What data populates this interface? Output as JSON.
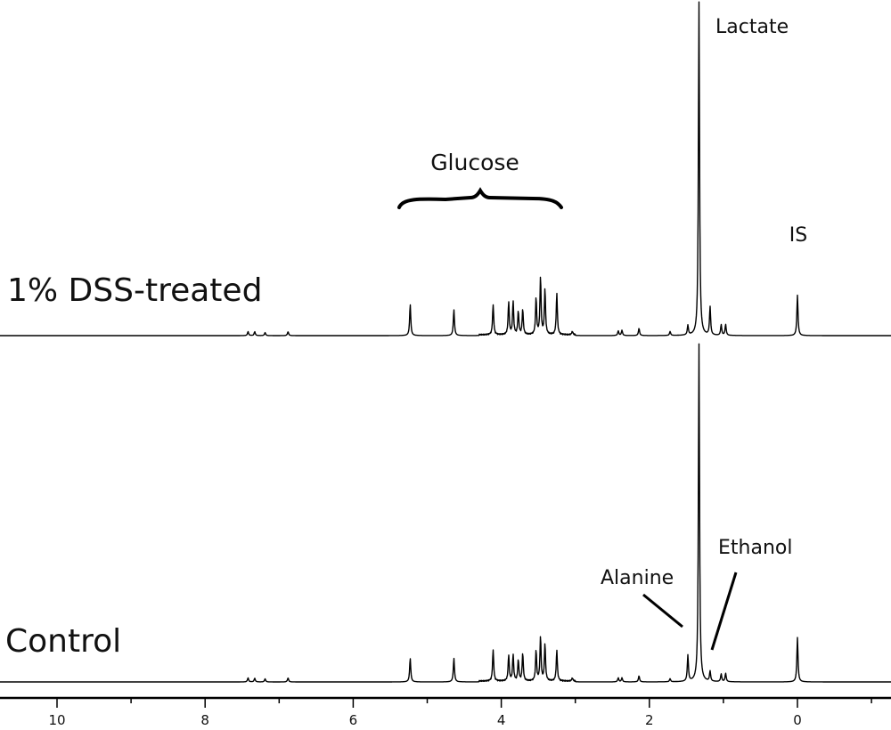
{
  "chart_data": {
    "type": "line",
    "title": "",
    "xlabel": "",
    "ylabel": "",
    "x_reversed": true,
    "xlim": [
      11,
      -1.25
    ],
    "x_ticks": [
      10,
      8,
      6,
      4,
      2,
      0
    ],
    "x_tick_labels": [
      "10",
      "8",
      "6",
      "4",
      "2",
      "0"
    ],
    "grid": false,
    "series": [
      {
        "name": "1% DSS-treated",
        "peaks": [
          {
            "ppm": 7.42,
            "h": 0.012
          },
          {
            "ppm": 7.33,
            "h": 0.012
          },
          {
            "ppm": 7.19,
            "h": 0.009
          },
          {
            "ppm": 6.88,
            "h": 0.012
          },
          {
            "ppm": 5.23,
            "h": 0.094
          },
          {
            "ppm": 4.64,
            "h": 0.078
          },
          {
            "ppm": 4.11,
            "h": 0.092
          },
          {
            "ppm": 3.9,
            "h": 0.098
          },
          {
            "ppm": 3.84,
            "h": 0.1
          },
          {
            "ppm": 3.77,
            "h": 0.07
          },
          {
            "ppm": 3.71,
            "h": 0.076
          },
          {
            "ppm": 3.53,
            "h": 0.11
          },
          {
            "ppm": 3.47,
            "h": 0.173
          },
          {
            "ppm": 3.41,
            "h": 0.137
          },
          {
            "ppm": 3.25,
            "h": 0.124
          },
          {
            "ppm": 3.04,
            "h": 0.01
          },
          {
            "ppm": 2.42,
            "h": 0.014
          },
          {
            "ppm": 2.37,
            "h": 0.016
          },
          {
            "ppm": 2.14,
            "h": 0.022
          },
          {
            "ppm": 1.72,
            "h": 0.012
          },
          {
            "ppm": 1.48,
            "h": 0.029
          },
          {
            "ppm": 1.33,
            "h": 1.0
          },
          {
            "ppm": 1.18,
            "h": 0.085
          },
          {
            "ppm": 1.03,
            "h": 0.032
          },
          {
            "ppm": 0.97,
            "h": 0.033
          },
          {
            "ppm": 0.0,
            "h": 0.121
          }
        ]
      },
      {
        "name": "Control",
        "peaks": [
          {
            "ppm": 7.42,
            "h": 0.012
          },
          {
            "ppm": 7.33,
            "h": 0.011
          },
          {
            "ppm": 7.19,
            "h": 0.009
          },
          {
            "ppm": 6.88,
            "h": 0.012
          },
          {
            "ppm": 5.23,
            "h": 0.07
          },
          {
            "ppm": 4.64,
            "h": 0.07
          },
          {
            "ppm": 4.11,
            "h": 0.094
          },
          {
            "ppm": 3.9,
            "h": 0.076
          },
          {
            "ppm": 3.84,
            "h": 0.078
          },
          {
            "ppm": 3.77,
            "h": 0.062
          },
          {
            "ppm": 3.71,
            "h": 0.082
          },
          {
            "ppm": 3.53,
            "h": 0.09
          },
          {
            "ppm": 3.47,
            "h": 0.131
          },
          {
            "ppm": 3.41,
            "h": 0.11
          },
          {
            "ppm": 3.25,
            "h": 0.091
          },
          {
            "ppm": 3.04,
            "h": 0.009
          },
          {
            "ppm": 2.42,
            "h": 0.012
          },
          {
            "ppm": 2.37,
            "h": 0.012
          },
          {
            "ppm": 2.14,
            "h": 0.018
          },
          {
            "ppm": 1.72,
            "h": 0.009
          },
          {
            "ppm": 1.48,
            "h": 0.077
          },
          {
            "ppm": 1.33,
            "h": 0.997
          },
          {
            "ppm": 1.18,
            "h": 0.03
          },
          {
            "ppm": 1.03,
            "h": 0.023
          },
          {
            "ppm": 0.97,
            "h": 0.025
          },
          {
            "ppm": 0.0,
            "h": 0.131
          }
        ]
      }
    ],
    "annotations": [
      {
        "text": "Lactate",
        "ppm": 1.33
      },
      {
        "text": "Glucose",
        "ppm_range": [
          5.3,
          3.2
        ]
      },
      {
        "text": "IS",
        "ppm": 0.0
      },
      {
        "text": "Alanine",
        "ppm": 1.48
      },
      {
        "text": "Ethanol",
        "ppm": 1.18
      }
    ]
  }
}
